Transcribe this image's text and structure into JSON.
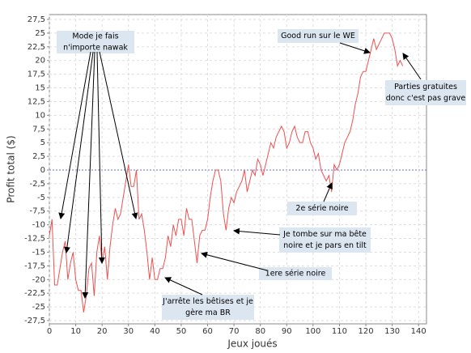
{
  "chart_data": {
    "type": "line",
    "x_label": "Jeux joués",
    "y_label": "Profit total ($)",
    "x": [
      0,
      1,
      2,
      3,
      4,
      5,
      6,
      7,
      8,
      9,
      10,
      11,
      12,
      13,
      14,
      15,
      16,
      17,
      18,
      19,
      20,
      21,
      22,
      23,
      24,
      25,
      26,
      27,
      28,
      29,
      30,
      31,
      32,
      33,
      34,
      35,
      36,
      37,
      38,
      39,
      40,
      41,
      42,
      43,
      44,
      45,
      46,
      47,
      48,
      49,
      50,
      51,
      52,
      53,
      54,
      55,
      56,
      57,
      58,
      59,
      60,
      61,
      62,
      63,
      64,
      65,
      66,
      67,
      68,
      69,
      70,
      71,
      72,
      73,
      74,
      75,
      76,
      77,
      78,
      79,
      80,
      81,
      82,
      83,
      84,
      85,
      86,
      87,
      88,
      89,
      90,
      91,
      92,
      93,
      94,
      95,
      96,
      97,
      98,
      99,
      100,
      101,
      102,
      103,
      104,
      105,
      106,
      107,
      108,
      109,
      110,
      111,
      112,
      113,
      114,
      115,
      116,
      117,
      118,
      119,
      120,
      121,
      122,
      123,
      124,
      125,
      126,
      127,
      128,
      129,
      130,
      131,
      132,
      133,
      134
    ],
    "series": [
      {
        "color": "#f05050",
        "values": [
          -12,
          -9,
          -21,
          -21,
          -18,
          -15,
          -13,
          -20,
          -17,
          -15,
          -20,
          -22,
          -22,
          -26,
          -23,
          -18,
          -17,
          -23,
          -15,
          -12,
          -17,
          -14,
          -20,
          -14,
          -10,
          -7,
          -9,
          -8,
          -5,
          -2,
          1,
          -3,
          -3,
          0,
          -9,
          -8,
          -11,
          -15,
          -20,
          -16,
          -20,
          -20,
          -18,
          -18,
          -16,
          -12,
          -14,
          -10,
          -12,
          -9,
          -9,
          -12,
          -7,
          -9,
          -9,
          -13,
          -17,
          -12,
          -11,
          -11,
          -9,
          -5,
          -2,
          0,
          0,
          -2,
          -8,
          -11,
          -7,
          -5,
          -6,
          -4,
          -3,
          -2,
          0,
          -4,
          -2,
          0,
          -1,
          2,
          1,
          -1,
          1,
          3,
          5,
          4,
          6,
          7,
          8,
          7,
          4,
          5,
          7,
          8,
          6,
          5,
          5,
          7,
          7,
          5,
          4,
          2,
          3,
          0,
          -1,
          -2,
          -1,
          -4,
          1,
          0,
          1,
          3,
          5,
          6,
          7,
          9,
          12,
          14,
          17,
          18,
          18,
          20,
          22,
          24,
          22,
          23,
          24,
          25,
          25,
          25,
          24,
          22,
          19,
          20,
          19
        ]
      }
    ],
    "xlim": [
      0,
      143
    ],
    "ylim": [
      -27.5,
      27.5
    ],
    "xticks": [
      0,
      10,
      20,
      30,
      40,
      50,
      60,
      70,
      80,
      90,
      100,
      110,
      120,
      130,
      140
    ],
    "yticks": [
      {
        "value": -27.5,
        "label": "-27,5"
      },
      {
        "value": -25,
        "label": "-25"
      },
      {
        "value": -22.5,
        "label": "-22,5"
      },
      {
        "value": -20,
        "label": "-20"
      },
      {
        "value": -17.5,
        "label": "-17,5"
      },
      {
        "value": -15,
        "label": "-15"
      },
      {
        "value": -12.5,
        "label": "-12,5"
      },
      {
        "value": -10,
        "label": "-10"
      },
      {
        "value": -7.5,
        "label": "-7,5"
      },
      {
        "value": -5,
        "label": "-5"
      },
      {
        "value": -2.5,
        "label": "-2,5"
      },
      {
        "value": 0,
        "label": "0"
      },
      {
        "value": 2.5,
        "label": "2,5"
      },
      {
        "value": 5,
        "label": "5"
      },
      {
        "value": 7.5,
        "label": "7,5"
      },
      {
        "value": 10,
        "label": "10"
      },
      {
        "value": 12.5,
        "label": "12,5"
      },
      {
        "value": 15,
        "label": "15"
      },
      {
        "value": 17.5,
        "label": "17,5"
      },
      {
        "value": 20,
        "label": "20"
      },
      {
        "value": 22.5,
        "label": "22,5"
      },
      {
        "value": 25,
        "label": "25"
      },
      {
        "value": 27.5,
        "label": "27,5"
      }
    ],
    "grid": true,
    "annotations": [
      {
        "lines": [
          "Mode je fais",
          "n'importe nawak"
        ]
      },
      {
        "lines": [
          "Good run sur le WE"
        ]
      },
      {
        "lines": [
          "Parties gratuites",
          "donc c'est pas grave"
        ]
      },
      {
        "lines": [
          "2e série noire"
        ]
      },
      {
        "lines": [
          "Je tombe sur ma bête",
          "noire et je pars en tilt"
        ]
      },
      {
        "lines": [
          "1ere série noire"
        ]
      },
      {
        "lines": [
          "J'arrête les bêtises et je",
          "gère ma BR"
        ]
      }
    ]
  }
}
